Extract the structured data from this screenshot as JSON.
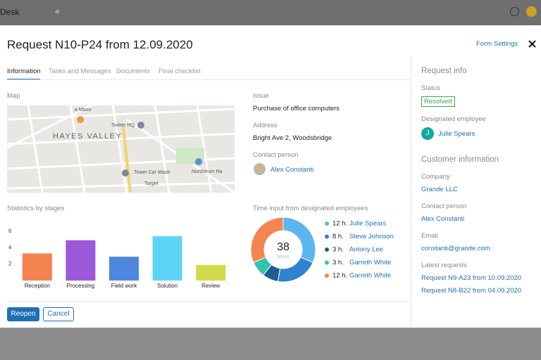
{
  "topbar": {
    "app": "Desk",
    "collapse": "«"
  },
  "modal": {
    "title": "Request N10-P24 from 12.09.2020",
    "form_settings": "Form Settings"
  },
  "tabs": [
    "Information",
    "Tasks and Messages",
    "Documents",
    "Final checklist"
  ],
  "map": {
    "label": "Map",
    "places": [
      "HAYES VALLEY",
      "Twitter HQ",
      "Tower Car Wash",
      "Target",
      "Nordstrom Ra",
      "a Mano"
    ]
  },
  "issue": {
    "label": "Issue",
    "value": "Purchase of office computers"
  },
  "address": {
    "label": "Address",
    "value": "Bright Ave 2, Woodsbridge"
  },
  "contact": {
    "label": "Contact person",
    "value": "Alex Constanti"
  },
  "chart_data": [
    {
      "type": "bar",
      "title": "Statistics by stages",
      "categories": [
        "Reception",
        "Processing",
        "Field work",
        "Solution",
        "Review"
      ],
      "values": [
        3.3,
        4.9,
        2.9,
        5.4,
        1.9
      ],
      "colors": [
        "#f5834f",
        "#9b59d9",
        "#4f86e0",
        "#5dd4f7",
        "#d4d94a"
      ],
      "ylim": [
        0,
        6.5
      ],
      "yticks": [
        2,
        4,
        6
      ],
      "grid": false
    },
    {
      "type": "pie",
      "title": "Time input from designated employees",
      "categories": [
        "Julie Spears",
        "Steve Johnson",
        "Antony Lee",
        "Garreth White",
        "Garreth White"
      ],
      "values": [
        12,
        8,
        3,
        3,
        12
      ],
      "value_labels": [
        "12 h.",
        "8 h.",
        "3 h.",
        "3 h.",
        "12 h."
      ],
      "colors": [
        "#5bb5f0",
        "#2d83cf",
        "#1b5e96",
        "#2fc6ab",
        "#f58550"
      ],
      "hole": true,
      "total": 38,
      "center_label": "hours"
    }
  ],
  "buttons": {
    "primary": "Reopen",
    "secondary": "Cancel"
  },
  "sidebar": {
    "request_info": "Request info",
    "status_label": "Status",
    "status": "Resolved",
    "employee_label": "Designated employee",
    "employee_initial": "J",
    "employee": "Julie Spears",
    "customer_info": "Customer information",
    "company_label": "Company",
    "company": "Grande LLC",
    "contact_label": "Contact person",
    "contact": "Alex Constanti",
    "email_label": "Email",
    "email": "constanti@grande.com",
    "latest_label": "Latest requests",
    "latest": [
      "Request N9-A23 from 10.09.2020",
      "Request N8-B22 from 04.09.2020"
    ]
  }
}
